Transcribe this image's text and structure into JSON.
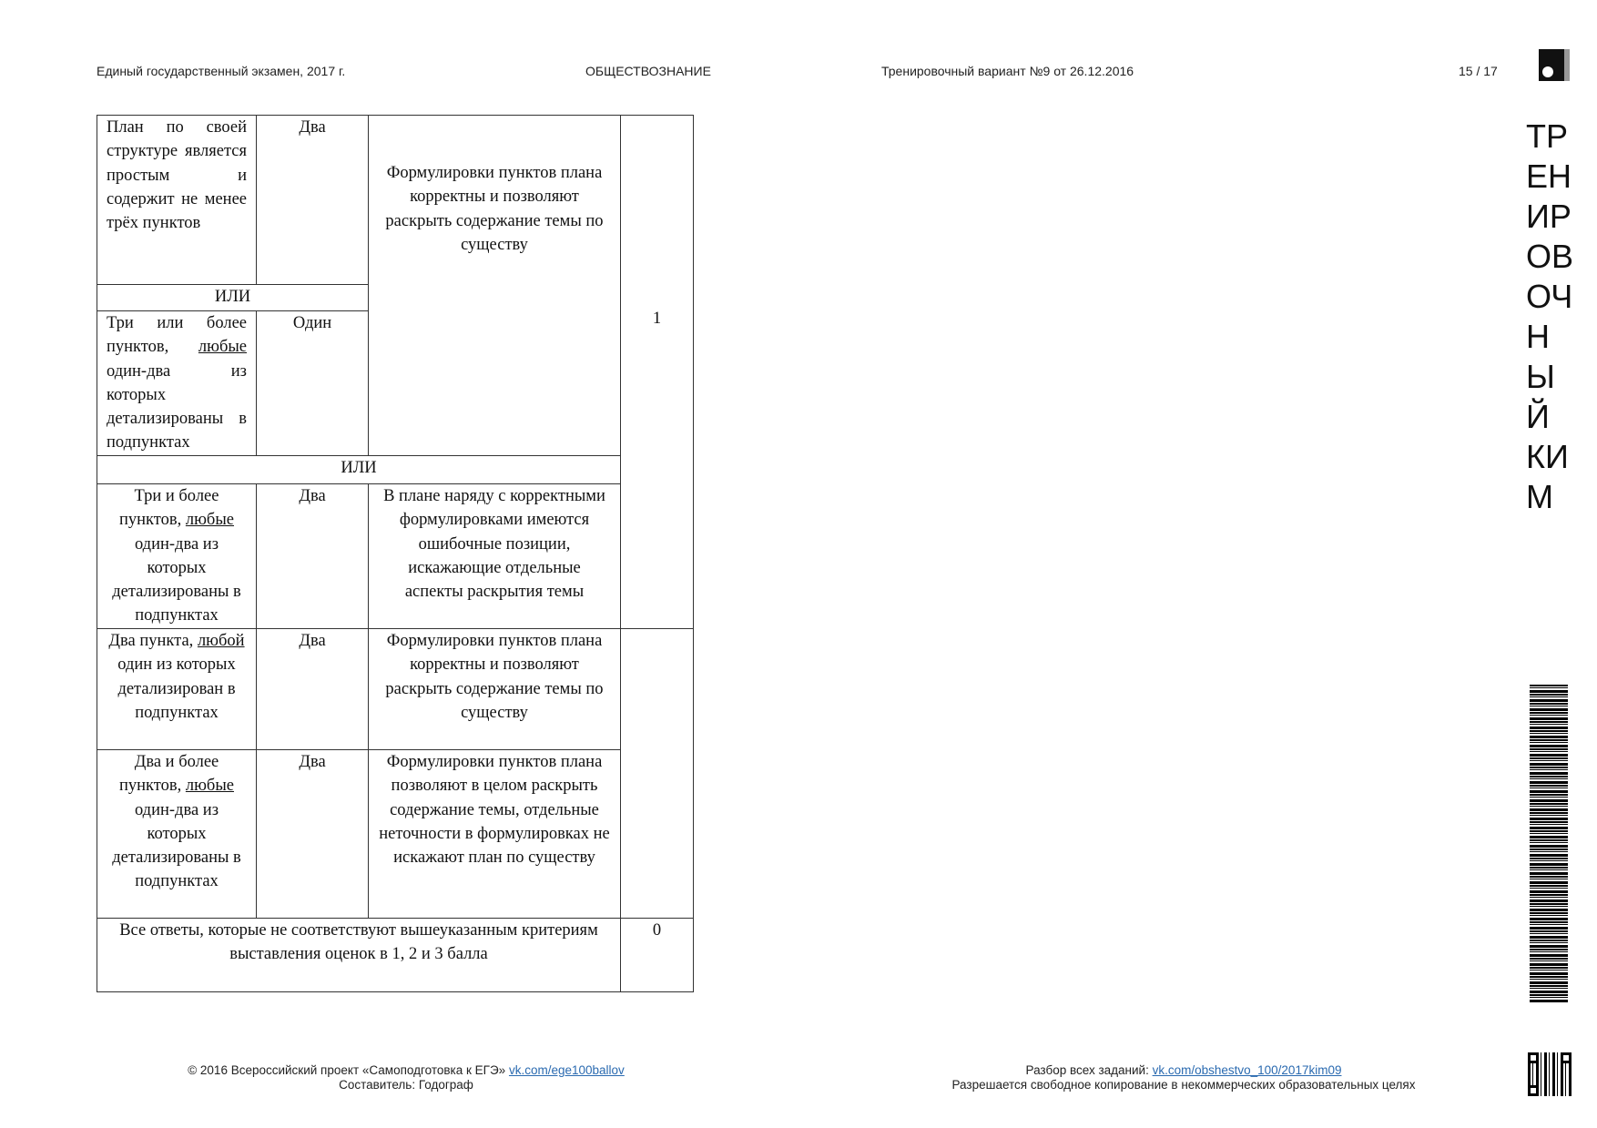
{
  "header": {
    "left": "Единый государственный экзамен, 2017 г.",
    "center": "ОБЩЕСТВОЗНАНИЕ",
    "right": "Тренировочный вариант №9 от 26.12.2016",
    "page": "15 / 17"
  },
  "side_text": "ТРЕНИРОВОЧНЫЙ КИМ",
  "table": {
    "r1": {
      "c1": "План по своей структуре является простым и содержит не менее трёх пунктов",
      "c2": "Два",
      "c3": "Формулировки пунктов плана корректны и позволяют раскрыть содержание темы по существу",
      "score": "1"
    },
    "or1": "ИЛИ",
    "r3": {
      "c1": "Три или более пунктов,",
      "c1_u": "любые",
      "c1_b": "один-два из которых детализированы в подпунктах",
      "c2": "Один"
    },
    "or2": "ИЛИ",
    "r5": {
      "c1": "Три и более пунктов,",
      "c1_u": "любые",
      "c1_b": "один-два из которых детализированы в подпунктах",
      "c2": "Два",
      "c3": "В плане наряду с корректными формулировками имеются ошибочные позиции, искажающие отдельные аспекты раскрытия темы"
    },
    "r6": {
      "c1": "Два пункта,",
      "c1_u": "любой",
      "c1_b": "один из которых детализирован в подпунктах",
      "c2": "Два",
      "c3": "Формулировки пунктов плана корректны и позволяют раскрыть содержание темы по существу"
    },
    "r7": {
      "c1": "Два и более пунктов,",
      "c1_u": "любые",
      "c1_b": "один-два из которых детализированы в подпунктах",
      "c2": "Два",
      "c3": "Формулировки пунктов плана позволяют в целом раскрыть содержание темы, отдельные неточности в формулировках не искажают план по существу"
    },
    "r8": {
      "line1": "Все ответы, которые не соответствуют вышеуказанным критериям",
      "line2": "выставления оценок в 1, 2 и 3 балла",
      "score": "0"
    }
  },
  "footer": {
    "left_text": "© 2016 Всероссийский проект «Самоподготовка к ЕГЭ»",
    "left_link": "vk.com/ege100ballov",
    "left_line2": "Составитель: Годограф",
    "right_text": "Разбор всех заданий:",
    "right_link": "vk.com/obshestvo_100/2017kim09",
    "right_line2": "Разрешается свободное копирование в некоммерческих образовательных целях"
  }
}
